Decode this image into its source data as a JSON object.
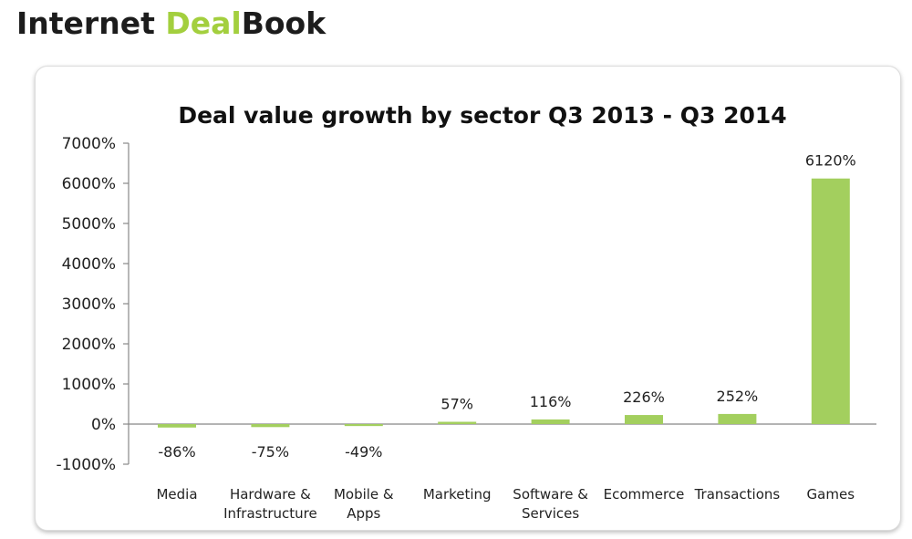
{
  "brand": {
    "prefix": "Internet ",
    "accent": "Deal",
    "suffix": "Book"
  },
  "chart_data": {
    "type": "bar",
    "title": "Deal value growth by sector Q3 2013 - Q3 2014",
    "xlabel": "",
    "ylabel": "",
    "ylim": [
      -1000,
      7000
    ],
    "yticks": [
      -1000,
      0,
      1000,
      2000,
      3000,
      4000,
      5000,
      6000,
      7000
    ],
    "ytick_labels": [
      "-1000%",
      "0%",
      "1000%",
      "2000%",
      "3000%",
      "4000%",
      "5000%",
      "6000%",
      "7000%"
    ],
    "categories": [
      [
        "Media"
      ],
      [
        "Hardware &",
        "Infrastructure"
      ],
      [
        "Mobile &",
        "Apps"
      ],
      [
        "Marketing"
      ],
      [
        "Software &",
        "Services"
      ],
      [
        "Ecommerce"
      ],
      [
        "Transactions"
      ],
      [
        "Games"
      ]
    ],
    "values": [
      -86,
      -75,
      -49,
      57,
      116,
      226,
      252,
      6120
    ],
    "value_labels": [
      "-86%",
      "-75%",
      "-49%",
      "57%",
      "116%",
      "226%",
      "252%",
      "6120%"
    ],
    "grid": false,
    "legend": "none",
    "colors": {
      "bar": "#a3cf5e",
      "axis": "#888888",
      "accent": "#a3cf3e"
    }
  }
}
